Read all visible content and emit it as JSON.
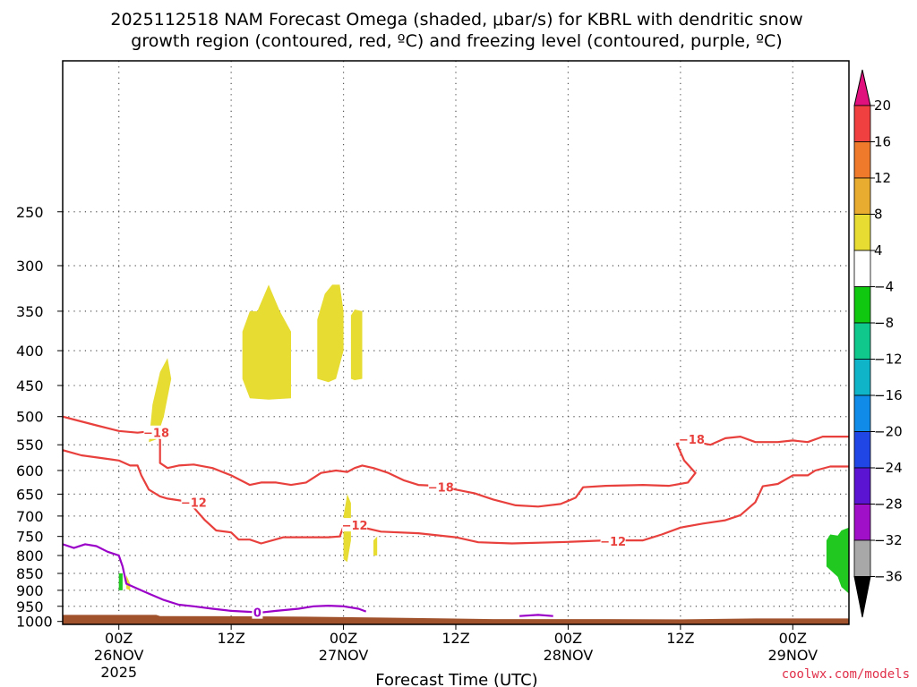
{
  "chart_data": {
    "type": "area",
    "title_lines": [
      "2025112518 NAM Forecast Omega (shaded, μbar/s) for KBRL with dendritic snow",
      "growth region (contoured, red, ºC) and freezing level (contoured, purple, ºC)"
    ],
    "xlabel": "Forecast Time (UTC)",
    "credit": "coolwx.com/models",
    "x_hours_range": [
      -15,
      195
    ],
    "y_pressure_range": [
      1010,
      150
    ],
    "y_ticks": [
      250,
      300,
      350,
      400,
      450,
      500,
      550,
      600,
      650,
      700,
      750,
      800,
      850,
      900,
      950,
      1000
    ],
    "x_ticks": [
      {
        "h": 0,
        "lines": [
          "00Z",
          "26NOV",
          "2025"
        ]
      },
      {
        "h": 30,
        "lines": [
          "12Z"
        ]
      },
      {
        "h": 60,
        "lines": [
          "00Z",
          "27NOV"
        ]
      },
      {
        "h": 90,
        "lines": [
          "12Z"
        ]
      },
      {
        "h": 120,
        "lines": [
          "00Z",
          "28NOV"
        ]
      },
      {
        "h": 150,
        "lines": [
          "12Z"
        ]
      },
      {
        "h": 180,
        "lines": [
          "00Z",
          "29NOV"
        ]
      }
    ],
    "grid": true,
    "series": [
      {
        "contour": "-18",
        "color": "#e8403c",
        "points": [
          [
            -15,
            500
          ],
          [
            -12,
            505
          ],
          [
            -6,
            515
          ],
          [
            0,
            525
          ],
          [
            5,
            528
          ],
          [
            9,
            525
          ],
          [
            11,
            540
          ],
          [
            11,
            585
          ],
          [
            13,
            595
          ],
          [
            16,
            590
          ],
          [
            20,
            588
          ],
          [
            25,
            595
          ],
          [
            30,
            610
          ],
          [
            35,
            630
          ],
          [
            38,
            625
          ],
          [
            42,
            625
          ],
          [
            46,
            630
          ],
          [
            50,
            625
          ],
          [
            54,
            605
          ],
          [
            58,
            600
          ],
          [
            61,
            603
          ],
          [
            63,
            595
          ],
          [
            65,
            590
          ],
          [
            68,
            595
          ],
          [
            72,
            605
          ],
          [
            76,
            620
          ],
          [
            80,
            630
          ],
          [
            85,
            632
          ],
          [
            90,
            640
          ],
          [
            95,
            648
          ],
          [
            100,
            662
          ],
          [
            106,
            675
          ],
          [
            112,
            678
          ],
          [
            118,
            672
          ],
          [
            122,
            658
          ],
          [
            124,
            635
          ],
          [
            130,
            632
          ],
          [
            140,
            630
          ],
          [
            147,
            632
          ],
          [
            152,
            625
          ],
          [
            154,
            605
          ],
          [
            151,
            580
          ],
          [
            149,
            548
          ],
          [
            154,
            545
          ],
          [
            158,
            550
          ],
          [
            162,
            538
          ],
          [
            166,
            535
          ],
          [
            170,
            545
          ],
          [
            176,
            545
          ],
          [
            180,
            542
          ],
          [
            184,
            545
          ],
          [
            188,
            535
          ],
          [
            195,
            535
          ]
        ]
      },
      {
        "contour": "-12",
        "color": "#e8403c",
        "points": [
          [
            -15,
            560
          ],
          [
            -10,
            570
          ],
          [
            -5,
            575
          ],
          [
            0,
            580
          ],
          [
            3,
            590
          ],
          [
            5,
            590
          ],
          [
            6,
            610
          ],
          [
            8,
            640
          ],
          [
            11,
            655
          ],
          [
            13,
            660
          ],
          [
            17,
            665
          ],
          [
            20,
            680
          ],
          [
            23,
            710
          ],
          [
            26,
            735
          ],
          [
            30,
            740
          ],
          [
            32,
            758
          ],
          [
            35,
            758
          ],
          [
            38,
            768
          ],
          [
            41,
            760
          ],
          [
            44,
            752
          ],
          [
            50,
            752
          ],
          [
            56,
            752
          ],
          [
            59,
            750
          ],
          [
            60,
            725
          ],
          [
            61,
            720
          ],
          [
            64,
            725
          ],
          [
            70,
            738
          ],
          [
            80,
            742
          ],
          [
            90,
            752
          ],
          [
            96,
            765
          ],
          [
            105,
            768
          ],
          [
            120,
            764
          ],
          [
            130,
            760
          ],
          [
            140,
            760
          ],
          [
            145,
            745
          ],
          [
            150,
            728
          ],
          [
            156,
            718
          ],
          [
            162,
            710
          ],
          [
            166,
            698
          ],
          [
            170,
            668
          ],
          [
            172,
            633
          ],
          [
            176,
            628
          ],
          [
            180,
            610
          ],
          [
            184,
            610
          ],
          [
            186,
            600
          ],
          [
            190,
            592
          ],
          [
            195,
            592
          ]
        ]
      },
      {
        "contour": "0",
        "color": "#9a00c8",
        "points": [
          [
            -15,
            770
          ],
          [
            -12,
            780
          ],
          [
            -9,
            770
          ],
          [
            -6,
            775
          ],
          [
            -3,
            790
          ],
          [
            0,
            800
          ],
          [
            1,
            830
          ],
          [
            2,
            880
          ],
          [
            5,
            895
          ],
          [
            8,
            910
          ],
          [
            12,
            930
          ],
          [
            16,
            945
          ],
          [
            20,
            950
          ],
          [
            25,
            958
          ],
          [
            30,
            965
          ],
          [
            35,
            968
          ],
          [
            38,
            970
          ],
          [
            42,
            965
          ],
          [
            48,
            958
          ],
          [
            52,
            950
          ],
          [
            56,
            948
          ],
          [
            60,
            950
          ],
          [
            64,
            958
          ],
          [
            66,
            967
          ]
        ]
      },
      {
        "contour": "0",
        "color": "#9a00c8",
        "points": [
          [
            107,
            982
          ],
          [
            112,
            978
          ],
          [
            116,
            982
          ]
        ]
      }
    ],
    "shaded_regions": [
      {
        "omega_band": "4 to 8",
        "color": "#e6dc32",
        "points": [
          [
            8,
            545
          ],
          [
            9,
            480
          ],
          [
            11,
            430
          ],
          [
            13,
            410
          ],
          [
            14,
            440
          ],
          [
            12,
            500
          ],
          [
            10,
            540
          ]
        ]
      },
      {
        "omega_band": "4 to 8",
        "color": "#e6dc32",
        "points": [
          [
            33,
            375
          ],
          [
            35,
            350
          ],
          [
            37,
            350
          ],
          [
            40,
            320
          ],
          [
            43,
            350
          ],
          [
            46,
            375
          ],
          [
            46,
            470
          ],
          [
            40,
            472
          ],
          [
            35,
            470
          ],
          [
            33,
            440
          ]
        ]
      },
      {
        "omega_band": "4 to 8",
        "color": "#e6dc32",
        "points": [
          [
            53,
            440
          ],
          [
            53,
            360
          ],
          [
            55,
            330
          ],
          [
            57,
            320
          ],
          [
            59,
            320
          ],
          [
            60,
            350
          ],
          [
            60,
            400
          ],
          [
            58,
            440
          ],
          [
            56,
            445
          ]
        ]
      },
      {
        "omega_band": "4 to 8",
        "color": "#e6dc32",
        "points": [
          [
            62,
            440
          ],
          [
            62,
            355
          ],
          [
            63,
            348
          ],
          [
            65,
            350
          ],
          [
            65,
            440
          ],
          [
            63,
            442
          ]
        ]
      },
      {
        "omega_band": "4 to 8",
        "color": "#e6dc32",
        "points": [
          [
            60,
            810
          ],
          [
            60,
            700
          ],
          [
            61,
            650
          ],
          [
            62,
            670
          ],
          [
            62,
            760
          ],
          [
            61,
            818
          ]
        ]
      },
      {
        "omega_band": "4 to 8",
        "color": "#e6dc32",
        "points": [
          [
            68,
            800
          ],
          [
            68,
            760
          ],
          [
            69,
            750
          ],
          [
            69,
            800
          ]
        ]
      },
      {
        "omega_band": "4 to 8",
        "color": "#e6dc32",
        "points": [
          [
            2,
            895
          ],
          [
            2,
            855
          ],
          [
            3,
            880
          ],
          [
            3,
            900
          ]
        ]
      },
      {
        "omega_band": "-4 to -8",
        "color": "#20c820",
        "points": [
          [
            0,
            900
          ],
          [
            0,
            850
          ],
          [
            1,
            850
          ],
          [
            1,
            900
          ]
        ]
      },
      {
        "omega_band": "-4 to -8",
        "color": "#20c820",
        "points": [
          [
            189,
            830
          ],
          [
            189,
            760
          ],
          [
            190,
            745
          ],
          [
            192,
            748
          ],
          [
            193,
            735
          ],
          [
            195,
            728
          ],
          [
            195,
            910
          ],
          [
            193,
            890
          ],
          [
            192,
            860
          ],
          [
            190,
            840
          ]
        ]
      }
    ],
    "terrain": {
      "color": "#a0522d",
      "points": [
        [
          -15,
          978
        ],
        [
          0,
          978
        ],
        [
          10,
          978
        ],
        [
          11,
          982
        ],
        [
          35,
          983
        ],
        [
          50,
          984
        ],
        [
          70,
          987
        ],
        [
          100,
          992
        ],
        [
          130,
          992
        ],
        [
          150,
          993
        ],
        [
          170,
          990
        ],
        [
          195,
          990
        ]
      ]
    },
    "colorbar": {
      "bands": [
        {
          "lo": 16,
          "hi": 20,
          "color": "#f04040"
        },
        {
          "lo": 12,
          "hi": 16,
          "color": "#ef7a2b"
        },
        {
          "lo": 8,
          "hi": 12,
          "color": "#e8ac30"
        },
        {
          "lo": 4,
          "hi": 8,
          "color": "#e6dc32"
        },
        {
          "lo": -4,
          "hi": 4,
          "color": "#ffffff"
        },
        {
          "lo": -8,
          "hi": -4,
          "color": "#10c810"
        },
        {
          "lo": -12,
          "hi": -8,
          "color": "#10c88c"
        },
        {
          "lo": -16,
          "hi": -12,
          "color": "#10b4c8"
        },
        {
          "lo": -20,
          "hi": -16,
          "color": "#108ce8"
        },
        {
          "lo": -24,
          "hi": -20,
          "color": "#2046e6"
        },
        {
          "lo": -28,
          "hi": -24,
          "color": "#5a14d2"
        },
        {
          "lo": -32,
          "hi": -28,
          "color": "#a010c8"
        },
        {
          "lo": -36,
          "hi": -32,
          "color": "#a8a8a8"
        }
      ],
      "over_color": "#e0107c",
      "under_color": "#000000",
      "tick_labels": [
        "20",
        "16",
        "12",
        "8",
        "4",
        "−4",
        "−8",
        "−12",
        "−16",
        "−20",
        "−24",
        "−28",
        "−32",
        "−36"
      ]
    },
    "contour_labels": [
      {
        "text": "−18",
        "h": 10,
        "p": 528,
        "color": "#e8403c"
      },
      {
        "text": "−12",
        "h": 20,
        "p": 668,
        "color": "#e8403c"
      },
      {
        "text": "−12",
        "h": 63,
        "p": 722,
        "color": "#e8403c"
      },
      {
        "text": "−18",
        "h": 86,
        "p": 635,
        "color": "#e8403c"
      },
      {
        "text": "−12",
        "h": 132,
        "p": 762,
        "color": "#e8403c"
      },
      {
        "text": "−18",
        "h": 153,
        "p": 540,
        "color": "#e8403c"
      },
      {
        "text": "0",
        "h": 37,
        "p": 970,
        "color": "#9a00c8"
      }
    ]
  }
}
